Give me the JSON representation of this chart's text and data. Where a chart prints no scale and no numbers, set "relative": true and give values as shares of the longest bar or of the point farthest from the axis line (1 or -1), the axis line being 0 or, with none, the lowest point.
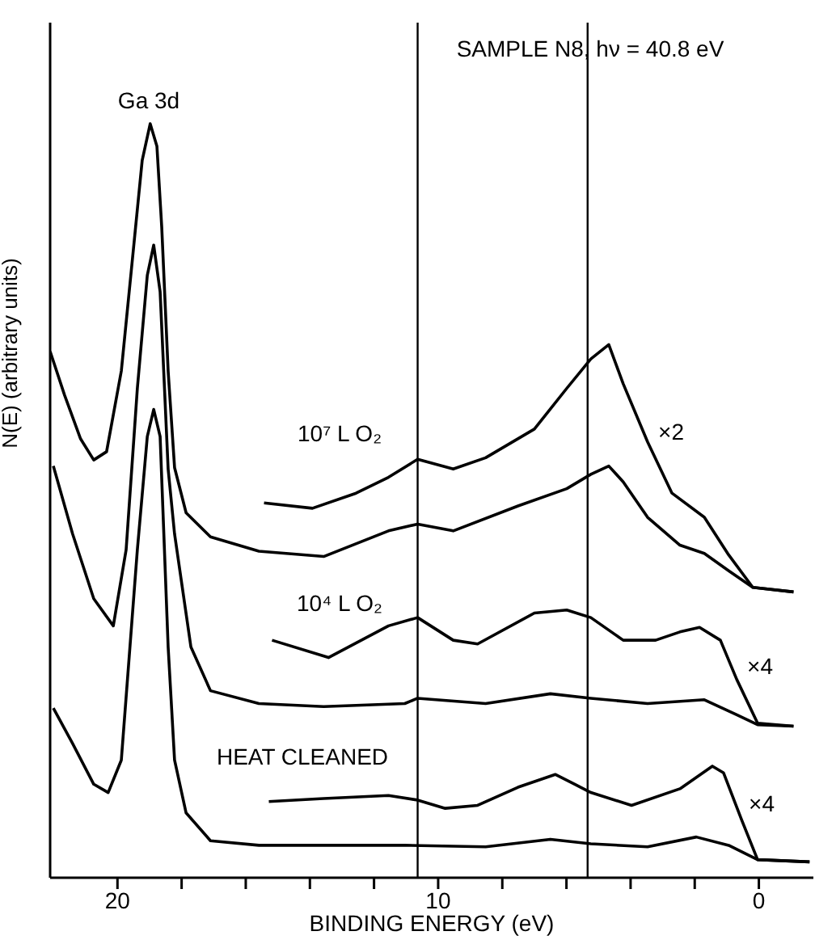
{
  "chart_data": {
    "type": "line",
    "title": "SAMPLE N8, hν = 40.8 eV",
    "xlabel": "BINDING ENERGY (eV)",
    "ylabel": "N(E) (arbitrary units)",
    "relative": true,
    "tick_labels": "x",
    "grid": false,
    "marker": "none",
    "line_style": "solid",
    "xlim": [
      22.1,
      -1.7
    ],
    "xticks": [
      20,
      {
        "value": 18,
        "label": null
      },
      {
        "value": 16,
        "label": null
      },
      {
        "value": 14,
        "label": null
      },
      {
        "value": 12,
        "label": null
      },
      10,
      {
        "value": 8,
        "label": null
      },
      {
        "value": 6,
        "label": null
      },
      {
        "value": 4,
        "label": null
      },
      {
        "value": 2,
        "label": null
      },
      0
    ],
    "series": [
      {
        "color": "#000000",
        "x": [
          22.1,
          21.65,
          21.15,
          20.74,
          20.34,
          19.88,
          19.53,
          19.23,
          18.98,
          18.77,
          18.62,
          18.42,
          18.22,
          17.86,
          17.1,
          15.59,
          13.57,
          11.55,
          10.64,
          9.53,
          7.51,
          5.99,
          5.24,
          4.68,
          4.23,
          3.47,
          2.46,
          1.7,
          0.94,
          0.19,
          -1.08
        ],
        "values": [
          0.698,
          0.64,
          0.582,
          0.554,
          0.565,
          0.672,
          0.822,
          0.951,
          1.0,
          0.97,
          0.863,
          0.672,
          0.544,
          0.484,
          0.452,
          0.433,
          0.426,
          0.46,
          0.469,
          0.46,
          0.493,
          0.516,
          0.535,
          0.546,
          0.525,
          0.478,
          0.441,
          0.43,
          0.407,
          0.385,
          0.379
        ]
      },
      {
        "color": "#000000",
        "x": [
          15.43,
          13.92,
          12.56,
          11.55,
          10.64,
          9.53,
          8.52,
          7.0,
          5.99,
          5.24,
          4.68,
          4.23,
          3.47,
          2.71,
          1.7,
          0.94,
          0.19,
          -1.08
        ],
        "values": [
          0.497,
          0.49,
          0.51,
          0.531,
          0.555,
          0.542,
          0.557,
          0.595,
          0.649,
          0.688,
          0.707,
          0.655,
          0.578,
          0.51,
          0.478,
          0.428,
          0.385,
          0.379
        ]
      },
      {
        "color": "#000000",
        "x": [
          22.0,
          21.4,
          20.74,
          20.13,
          19.73,
          19.38,
          19.07,
          18.87,
          18.67,
          18.42,
          18.22,
          17.71,
          17.1,
          15.59,
          13.57,
          11.04,
          10.64,
          8.52,
          6.5,
          5.24,
          3.47,
          1.7,
          0.69,
          0.04,
          -1.08
        ],
        "values": [
          0.546,
          0.456,
          0.37,
          0.334,
          0.435,
          0.649,
          0.799,
          0.839,
          0.777,
          0.542,
          0.456,
          0.306,
          0.248,
          0.231,
          0.227,
          0.231,
          0.238,
          0.231,
          0.244,
          0.238,
          0.231,
          0.236,
          0.216,
          0.203,
          0.201
        ]
      },
      {
        "color": "#000000",
        "x": [
          15.18,
          13.42,
          11.55,
          10.64,
          9.53,
          8.77,
          7.0,
          5.99,
          5.24,
          4.23,
          3.22,
          2.46,
          1.85,
          1.2,
          0.69,
          0.04,
          -1.08
        ],
        "values": [
          0.315,
          0.292,
          0.334,
          0.345,
          0.315,
          0.31,
          0.351,
          0.355,
          0.345,
          0.315,
          0.315,
          0.326,
          0.332,
          0.315,
          0.263,
          0.205,
          0.201
        ]
      },
      {
        "color": "#000000",
        "x": [
          22.0,
          21.4,
          20.74,
          20.29,
          19.88,
          19.38,
          19.07,
          18.87,
          18.67,
          18.42,
          18.22,
          17.86,
          17.1,
          15.59,
          11.04,
          8.52,
          6.5,
          5.24,
          3.47,
          1.95,
          0.94,
          0.04,
          -1.58
        ],
        "values": [
          0.225,
          0.178,
          0.124,
          0.113,
          0.156,
          0.435,
          0.585,
          0.621,
          0.585,
          0.306,
          0.156,
          0.086,
          0.049,
          0.043,
          0.043,
          0.041,
          0.051,
          0.045,
          0.041,
          0.054,
          0.043,
          0.024,
          0.021
        ]
      },
      {
        "color": "#000000",
        "x": [
          15.28,
          13.57,
          11.55,
          10.64,
          9.78,
          8.77,
          7.51,
          6.35,
          5.74,
          5.24,
          3.97,
          2.46,
          1.45,
          1.1,
          0.54,
          0.04,
          -1.58
        ],
        "values": [
          0.101,
          0.105,
          0.109,
          0.103,
          0.092,
          0.096,
          0.12,
          0.137,
          0.124,
          0.113,
          0.096,
          0.118,
          0.148,
          0.139,
          0.077,
          0.024,
          0.021
        ]
      }
    ],
    "ref_lines": [
      {
        "axis": "x",
        "value": 10.64,
        "color": "#000000"
      },
      {
        "axis": "x",
        "value": 5.34,
        "color": "#000000"
      }
    ],
    "annotations": [
      "Ga 3d",
      "10⁷ L O₂",
      "×2",
      "10⁴ L O₂",
      "×4",
      "HEAT CLEANED",
      "×4"
    ]
  }
}
